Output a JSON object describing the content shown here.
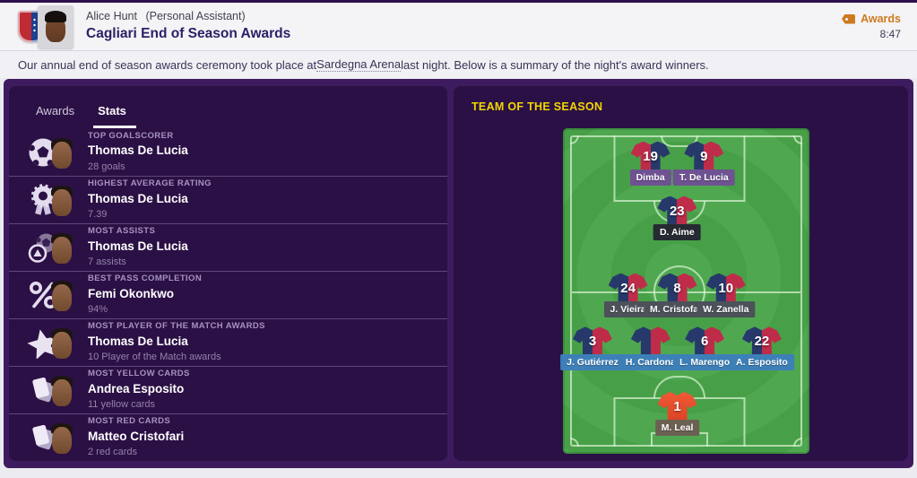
{
  "header": {
    "sender": "Alice Hunt",
    "sender_role": "(Personal Assistant)",
    "title": "Cagliari End of Season Awards",
    "category_badge": "Awards",
    "time": "8:47"
  },
  "intro": {
    "before_link": "Our annual end of season awards ceremony took place at ",
    "link": "Sardegna Arena",
    "after_link": " last night. Below is a summary of the night's award winners."
  },
  "panel": {
    "tabs": [
      {
        "label": "Awards",
        "active": false
      },
      {
        "label": "Stats",
        "active": true
      }
    ],
    "awards": [
      {
        "category": "TOP GOALSCORER",
        "player": "Thomas De Lucia",
        "stat": "28 goals",
        "icon": "football-icon"
      },
      {
        "category": "HIGHEST AVERAGE RATING",
        "player": "Thomas De Lucia",
        "stat": "7.39",
        "icon": "rosette-icon"
      },
      {
        "category": "MOST ASSISTS",
        "player": "Thomas De Lucia",
        "stat": "7 assists",
        "icon": "assists-icon"
      },
      {
        "category": "BEST PASS COMPLETION",
        "player": "Femi Okonkwo",
        "stat": "94%",
        "icon": "percent-icon"
      },
      {
        "category": "MOST PLAYER OF THE MATCH AWARDS",
        "player": "Thomas De Lucia",
        "stat": "10 Player of the Match awards",
        "icon": "star-icon"
      },
      {
        "category": "MOST YELLOW CARDS",
        "player": "Andrea Esposito",
        "stat": "11 yellow cards",
        "icon": "cards-icon"
      },
      {
        "category": "MOST RED CARDS",
        "player": "Matteo Cristofari",
        "stat": "2 red cards",
        "icon": "cards-icon"
      }
    ]
  },
  "team_of_the_season": {
    "title": "TEAM OF THE SEASON",
    "players": [
      {
        "number": "19",
        "name": "Dimba",
        "row": "striker",
        "slot": 0,
        "flipped": true
      },
      {
        "number": "9",
        "name": "T. De Lucia",
        "row": "striker",
        "slot": 1
      },
      {
        "number": "23",
        "name": "D. Aime",
        "row": "am",
        "slot": 0
      },
      {
        "number": "24",
        "name": "J. Vieira",
        "row": "mid",
        "slot": 0
      },
      {
        "number": "8",
        "name": "M. Cristofari",
        "row": "mid",
        "slot": 1
      },
      {
        "number": "10",
        "name": "W. Zanella",
        "row": "mid",
        "slot": 2
      },
      {
        "number": "3",
        "name": "J. Gutiérrez",
        "row": "def",
        "slot": 0
      },
      {
        "number": "",
        "name": "H. Cardona",
        "row": "def",
        "slot": 1
      },
      {
        "number": "6",
        "name": "L. Marengo",
        "row": "def",
        "slot": 2
      },
      {
        "number": "22",
        "name": "A. Esposito",
        "row": "def",
        "slot": 3
      },
      {
        "number": "1",
        "name": "M. Leal",
        "row": "gk",
        "slot": 0
      }
    ],
    "label_colors": {
      "striker": "#6e5292",
      "am": "#262a33",
      "mid": "#4c515a",
      "def": "#3d80b8",
      "gk": "#6b6153"
    }
  },
  "colors": {
    "accent_orange": "#cd7a1e",
    "title_yellow": "#f2d600",
    "shirt_navy": "#27396b",
    "shirt_red": "#bf2c4a",
    "gk_shirt_top": "#ef5a35",
    "gk_shirt_bottom": "#d83f22"
  }
}
